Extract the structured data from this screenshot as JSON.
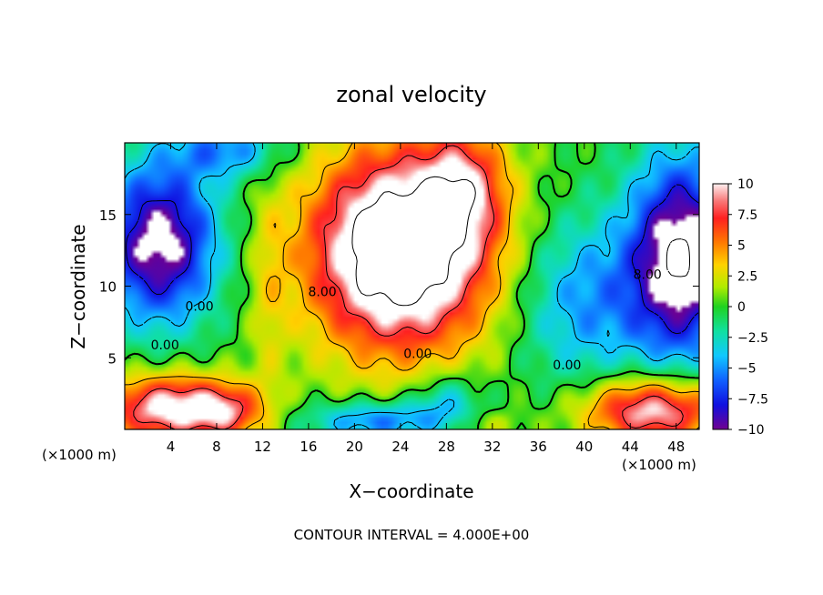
{
  "chart_data": {
    "type": "heatmap",
    "title": "zonal velocity",
    "xlabel": "X−coordinate",
    "ylabel": "Z−coordinate",
    "x_unit_left": "(×1000 m)",
    "x_unit_right": "(×1000 m)",
    "footer": "CONTOUR INTERVAL = 4.000E+00",
    "xlim": [
      0,
      50
    ],
    "ylim": [
      0,
      20
    ],
    "x_ticks": [
      4,
      8,
      12,
      16,
      20,
      24,
      28,
      32,
      36,
      40,
      44,
      48
    ],
    "y_ticks": [
      5,
      10,
      15
    ],
    "colorbar": {
      "range": [
        -10,
        10
      ],
      "ticks": [
        10,
        7.5,
        5,
        2.5,
        0,
        -2.5,
        -5,
        -7.5,
        -10
      ],
      "tick_labels": [
        "10",
        "7.5",
        "5",
        "2.5",
        "0",
        "−2.5",
        "−5",
        "−7.5",
        "−10"
      ]
    },
    "contour_labels": [
      {
        "text": "0.00",
        "x": 3.5,
        "y": 5.6
      },
      {
        "text": "0.00",
        "x": 6.5,
        "y": 8.3
      },
      {
        "text": "8.00",
        "x": 17.2,
        "y": 9.3
      },
      {
        "text": "0.00",
        "x": 25.5,
        "y": 5.0
      },
      {
        "text": "0.00",
        "x": 38.5,
        "y": 4.2
      },
      {
        "text": "8.00",
        "x": 45.5,
        "y": 10.5
      }
    ],
    "features": [
      {
        "kind": "max",
        "x": 22.5,
        "y": 14.0,
        "value": 12
      },
      {
        "kind": "max",
        "x": 20.5,
        "y": 9.5,
        "value": 12
      },
      {
        "kind": "max",
        "x": 29.5,
        "y": 17.0,
        "value": 9
      },
      {
        "kind": "min",
        "x": 3.5,
        "y": 12.5,
        "value": -14
      },
      {
        "kind": "min",
        "x": 1.5,
        "y": 17.5,
        "value": -12
      },
      {
        "kind": "min",
        "x": 10.0,
        "y": 19.5,
        "value": -10
      },
      {
        "kind": "min",
        "x": 48.5,
        "y": 17.5,
        "value": -12
      },
      {
        "kind": "min",
        "x": 48.0,
        "y": 10.5,
        "value": -12
      },
      {
        "kind": "min",
        "x": 45.5,
        "y": 19.0,
        "value": -10
      },
      {
        "kind": "min",
        "x": 1.0,
        "y": 8.0,
        "value": -9
      },
      {
        "kind": "max",
        "x": 3.5,
        "y": 2.0,
        "value": 11
      },
      {
        "kind": "max",
        "x": 7.0,
        "y": 1.5,
        "value": 8
      },
      {
        "kind": "max",
        "x": 44.0,
        "y": 1.5,
        "value": 10
      },
      {
        "kind": "max",
        "x": 48.0,
        "y": 1.0,
        "value": 11
      },
      {
        "kind": "min",
        "x": 22.0,
        "y": 0.6,
        "value": -3
      },
      {
        "kind": "max",
        "x": 31.0,
        "y": 0.4,
        "value": 3
      },
      {
        "kind": "min",
        "x": 28.5,
        "y": 2.0,
        "value": -6
      },
      {
        "kind": "min",
        "x": 40.5,
        "y": 9.0,
        "value": -3
      }
    ]
  }
}
